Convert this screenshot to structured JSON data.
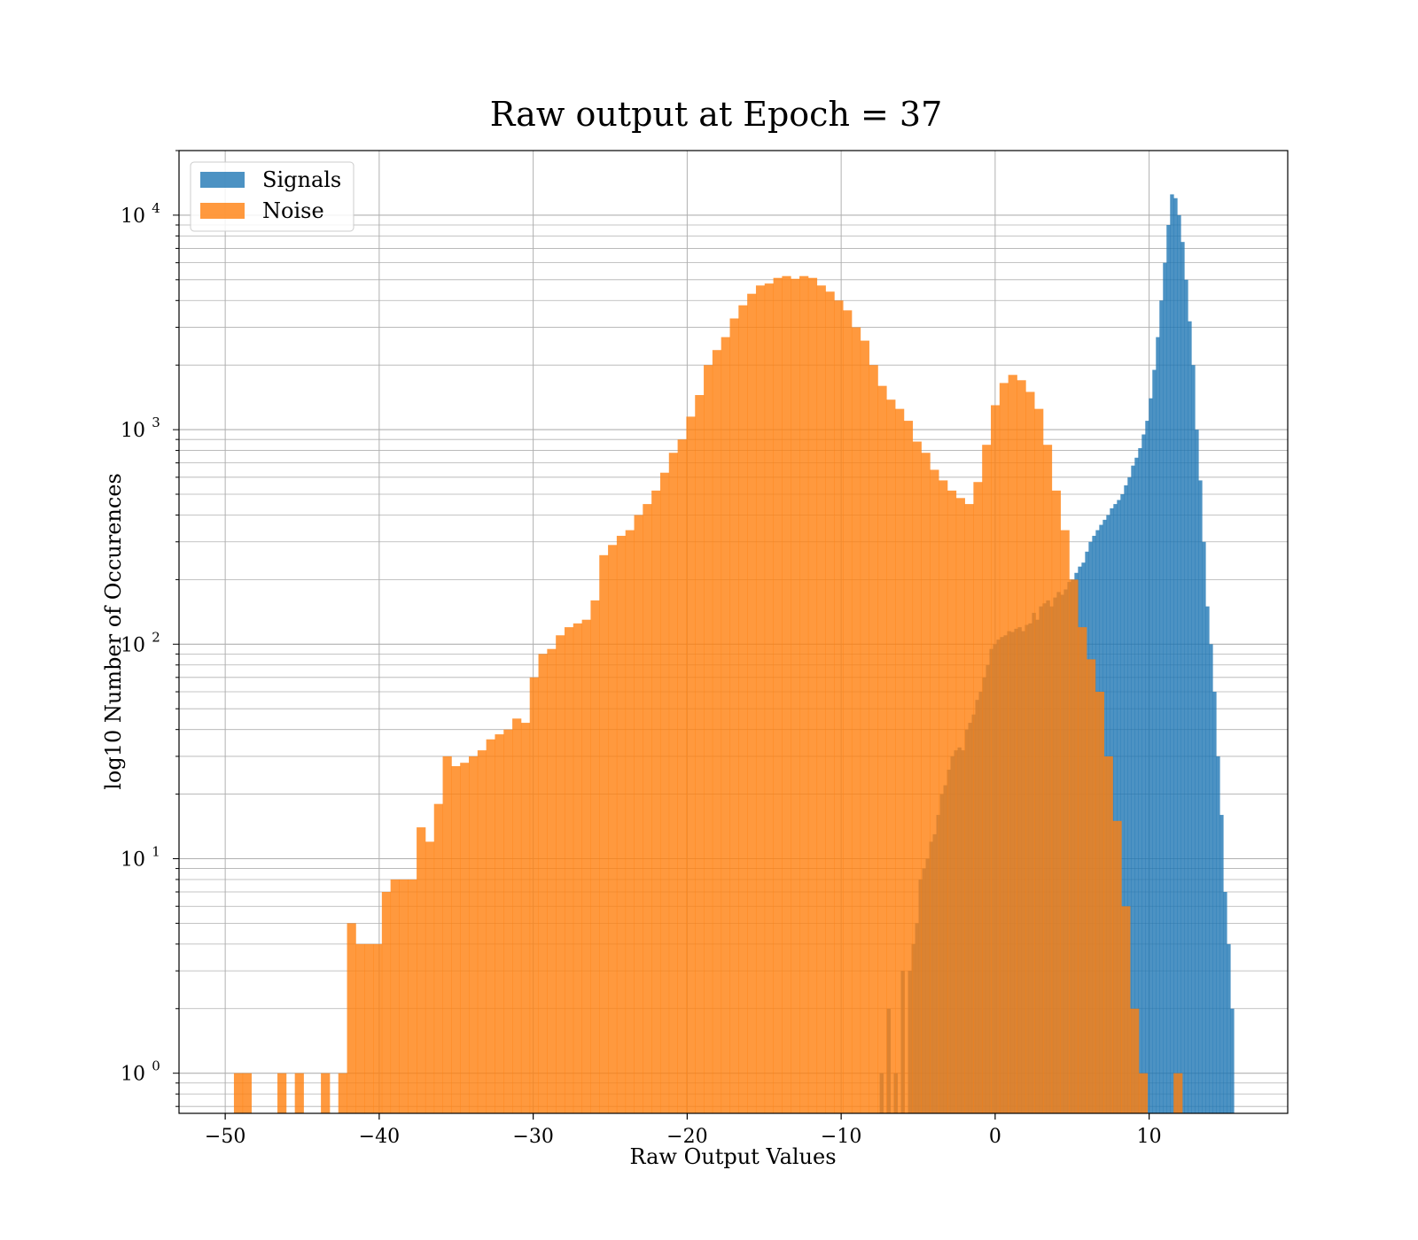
{
  "chart_data": {
    "type": "bar",
    "title": "Raw output at Epoch = 37",
    "xlabel": "Raw Output Values",
    "ylabel": "log10 Number of Occurences",
    "xlim": [
      -53,
      19
    ],
    "ylim": [
      0.65,
      20000
    ],
    "yscale": "log",
    "grid": true,
    "legend_position": "top-left",
    "x_ticks": [
      -50,
      -40,
      -30,
      -20,
      -10,
      0,
      10
    ],
    "x_tick_labels": [
      "−50",
      "−40",
      "−30",
      "−20",
      "−10",
      "0",
      "10"
    ],
    "y_ticks": [
      {
        "value": 1,
        "base": "10",
        "exp": "0"
      },
      {
        "value": 10,
        "base": "10",
        "exp": "1"
      },
      {
        "value": 100,
        "base": "10",
        "exp": "2"
      },
      {
        "value": 1000,
        "base": "10",
        "exp": "3"
      },
      {
        "value": 10000,
        "base": "10",
        "exp": "4"
      }
    ],
    "series": [
      {
        "name": "Signals",
        "color": "#1f77b4",
        "opacity": 0.8,
        "bin_start": -7.5,
        "bin_width": 0.23,
        "counts": [
          1,
          0,
          2,
          0,
          1,
          0,
          3,
          0,
          3,
          4,
          5,
          8,
          9,
          10,
          12,
          13,
          16,
          20,
          22,
          26,
          30,
          32,
          33,
          32,
          40,
          43,
          47,
          55,
          60,
          70,
          80,
          95,
          100,
          105,
          108,
          110,
          115,
          114,
          118,
          120,
          115,
          123,
          125,
          140,
          130,
          150,
          155,
          160,
          150,
          165,
          175,
          170,
          180,
          195,
          200,
          215,
          230,
          240,
          270,
          300,
          320,
          340,
          360,
          380,
          400,
          430,
          450,
          470,
          500,
          550,
          600,
          680,
          740,
          820,
          950,
          1100,
          1400,
          1900,
          2700,
          4000,
          6000,
          9000,
          12500,
          12000,
          10000,
          7500,
          5000,
          3200,
          2000,
          1000,
          580,
          300,
          150,
          100,
          60,
          30,
          16,
          7,
          4,
          2
        ]
      },
      {
        "name": "Noise",
        "color": "#ff7f0e",
        "opacity": 0.8,
        "bin_start": -50.0,
        "bin_width": 0.565,
        "counts": [
          0,
          1,
          1,
          0,
          0,
          0,
          1,
          0,
          1,
          0,
          0,
          1,
          0,
          1,
          5,
          4,
          4,
          4,
          7,
          8,
          8,
          8,
          14,
          12,
          18,
          30,
          27,
          28,
          30,
          32,
          36,
          38,
          40,
          45,
          43,
          70,
          90,
          95,
          110,
          120,
          125,
          130,
          160,
          260,
          290,
          320,
          340,
          400,
          450,
          520,
          630,
          780,
          900,
          1150,
          1450,
          2000,
          2350,
          2700,
          3300,
          3800,
          4300,
          4700,
          4800,
          5100,
          5200,
          5050,
          5200,
          5100,
          4700,
          4400,
          4000,
          3600,
          3000,
          2600,
          2000,
          1600,
          1380,
          1250,
          1100,
          880,
          780,
          650,
          580,
          520,
          480,
          450,
          570,
          850,
          1300,
          1650,
          1800,
          1700,
          1500,
          1250,
          850,
          520,
          340,
          200,
          120,
          85,
          60,
          30,
          15,
          6,
          2,
          1,
          0,
          0,
          0,
          1
        ]
      }
    ]
  }
}
